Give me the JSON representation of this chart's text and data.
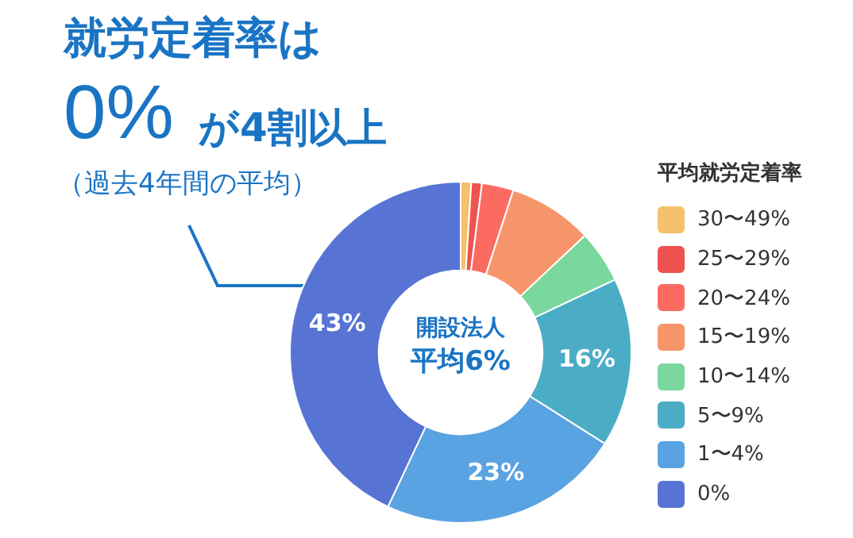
{
  "chart_data": {
    "type": "donut",
    "title": "就労定着率は",
    "subtitle": "（過去4年間の平均）",
    "legend_title": "平均就労定着率",
    "categories": [
      "30〜49%",
      "25〜29%",
      "20〜24%",
      "15〜19%",
      "10〜14%",
      "5〜9%",
      "1〜4%",
      "0%"
    ],
    "values": [
      1,
      1,
      3,
      8,
      5,
      16,
      23,
      43
    ],
    "colors": [
      "#f5c26b",
      "#ef5350",
      "#fc6b62",
      "#f7956a",
      "#7ad79e",
      "#4bacc6",
      "#5aa3e2",
      "#5774d4"
    ],
    "value_labels": [
      null,
      null,
      null,
      null,
      null,
      "16%",
      "23%",
      "43%"
    ],
    "annotations": [
      "0%",
      "が4割以上",
      "開設法人",
      "平均6%"
    ],
    "legend": "right"
  }
}
